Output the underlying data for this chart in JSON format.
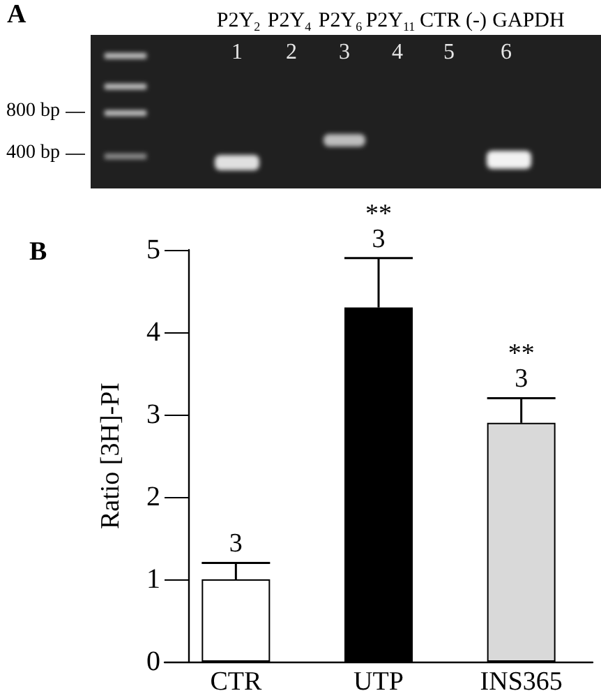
{
  "chart_data": {
    "type": "bar",
    "title": "B",
    "categories": [
      "CTR",
      "UTP",
      "INS365"
    ],
    "values": [
      1.0,
      4.3,
      2.9
    ],
    "colors": [
      "#ffffff",
      "#000000",
      "#d9d9d9"
    ],
    "errors": [
      [
        1.0,
        1.2
      ],
      [
        4.3,
        4.9
      ],
      [
        2.9,
        3.2
      ]
    ],
    "ylabel": "Ratio [3H]-PI",
    "ylim": [
      0,
      5
    ],
    "yticks": [
      0,
      1,
      2,
      3,
      4,
      5
    ],
    "annotations": [
      "A",
      "P2Y$_{2}$",
      "P2Y$_{4}$",
      "P2Y$_{6}$",
      "P2Y$_{11}$",
      "CTR (-)",
      "GAPDH",
      "1",
      "2",
      "3",
      "4",
      "5",
      "6",
      "800 bp",
      "400 bp",
      {
        "text": "3",
        "x": "CTR",
        "y": 1.2
      },
      {
        "text": "3",
        "x": "UTP",
        "y": 4.9
      },
      {
        "text": "**",
        "x": "UTP",
        "y": 4.9
      },
      {
        "text": "3",
        "x": "INS365",
        "y": 3.2
      },
      {
        "text": "**",
        "x": "INS365",
        "y": 3.2
      }
    ]
  }
}
